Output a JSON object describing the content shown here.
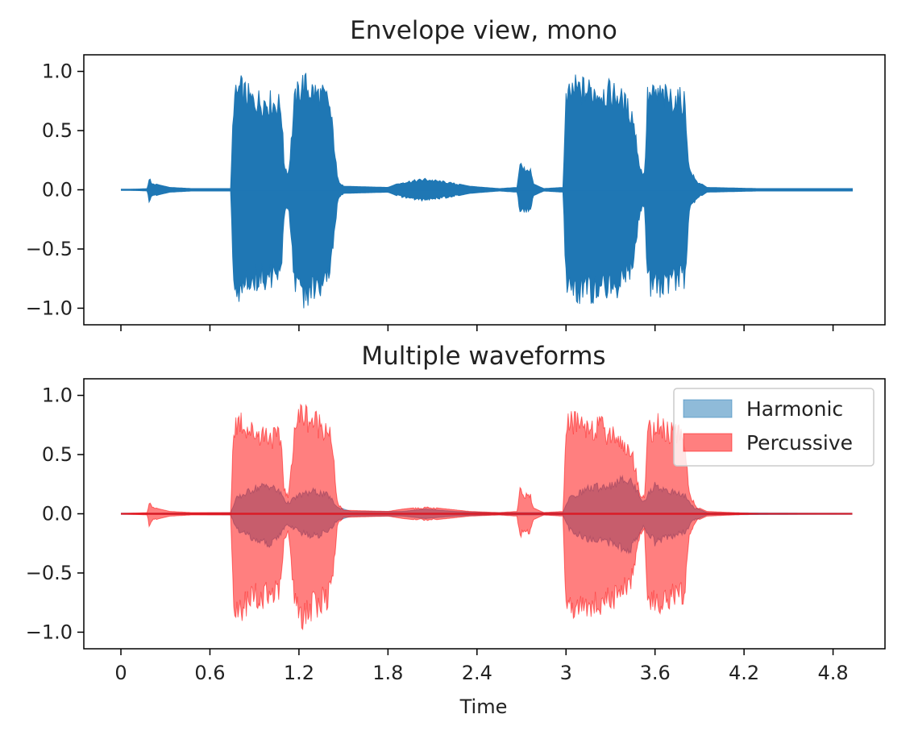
{
  "chart_data": [
    {
      "type": "area",
      "title": "Envelope view, mono",
      "xlabel": "",
      "ylabel": "",
      "xlim": [
        -0.25,
        5.15
      ],
      "ylim": [
        -1.14,
        1.14
      ],
      "xticks": [
        0,
        0.6,
        1.2,
        1.8,
        2.4,
        3.0,
        3.6,
        4.2,
        4.8
      ],
      "xticklabels": [
        "",
        "",
        "",
        "",
        "",
        "",
        "",
        "",
        ""
      ],
      "yticks": [
        1.0,
        0.5,
        0.0,
        -0.5,
        -1.0
      ],
      "yticklabels": [
        "1.0",
        "0.5",
        "0.0",
        "−0.5",
        "−1.0"
      ],
      "grid": false,
      "color": "#1f77b4",
      "series": [
        {
          "envelope": [
            [
              0.0,
              0.0
            ],
            [
              0.18,
              0.01
            ],
            [
              0.19,
              0.11
            ],
            [
              0.21,
              0.06
            ],
            [
              0.26,
              0.04
            ],
            [
              0.33,
              0.02
            ],
            [
              0.48,
              0.01
            ],
            [
              0.74,
              0.01
            ],
            [
              0.76,
              0.85
            ],
            [
              0.8,
              0.99
            ],
            [
              0.88,
              0.87
            ],
            [
              0.98,
              0.86
            ],
            [
              1.08,
              0.82
            ],
            [
              1.1,
              0.24
            ],
            [
              1.13,
              0.15
            ],
            [
              1.17,
              0.85
            ],
            [
              1.22,
              1.03
            ],
            [
              1.3,
              0.95
            ],
            [
              1.4,
              0.87
            ],
            [
              1.43,
              0.55
            ],
            [
              1.46,
              0.1
            ],
            [
              1.5,
              0.03
            ],
            [
              1.8,
              0.02
            ],
            [
              1.9,
              0.07
            ],
            [
              2.05,
              0.1
            ],
            [
              2.2,
              0.07
            ],
            [
              2.35,
              0.03
            ],
            [
              2.55,
              0.01
            ],
            [
              2.67,
              0.02
            ],
            [
              2.69,
              0.26
            ],
            [
              2.71,
              0.2
            ],
            [
              2.76,
              0.2
            ],
            [
              2.78,
              0.05
            ],
            [
              2.85,
              0.01
            ],
            [
              2.98,
              0.02
            ],
            [
              3.0,
              0.85
            ],
            [
              3.05,
              0.98
            ],
            [
              3.2,
              0.96
            ],
            [
              3.35,
              0.92
            ],
            [
              3.45,
              0.72
            ],
            [
              3.5,
              0.2
            ],
            [
              3.53,
              0.15
            ],
            [
              3.55,
              0.9
            ],
            [
              3.62,
              0.92
            ],
            [
              3.72,
              0.88
            ],
            [
              3.8,
              0.86
            ],
            [
              3.83,
              0.2
            ],
            [
              3.88,
              0.08
            ],
            [
              3.95,
              0.02
            ],
            [
              4.3,
              0.01
            ],
            [
              4.93,
              0.01
            ]
          ],
          "neg_envelope": [
            [
              0.0,
              0.0
            ],
            [
              0.18,
              -0.01
            ],
            [
              0.19,
              -0.11
            ],
            [
              0.21,
              -0.06
            ],
            [
              0.26,
              -0.04
            ],
            [
              0.33,
              -0.02
            ],
            [
              0.48,
              -0.01
            ],
            [
              0.74,
              -0.01
            ],
            [
              0.76,
              -0.85
            ],
            [
              0.8,
              -0.97
            ],
            [
              0.88,
              -0.87
            ],
            [
              0.98,
              -0.86
            ],
            [
              1.08,
              -0.82
            ],
            [
              1.1,
              -0.24
            ],
            [
              1.13,
              -0.15
            ],
            [
              1.17,
              -0.85
            ],
            [
              1.22,
              -1.03
            ],
            [
              1.3,
              -0.95
            ],
            [
              1.4,
              -0.87
            ],
            [
              1.43,
              -0.55
            ],
            [
              1.46,
              -0.1
            ],
            [
              1.5,
              -0.03
            ],
            [
              1.8,
              -0.02
            ],
            [
              1.9,
              -0.07
            ],
            [
              2.05,
              -0.1
            ],
            [
              2.2,
              -0.07
            ],
            [
              2.35,
              -0.03
            ],
            [
              2.55,
              -0.01
            ],
            [
              2.67,
              -0.02
            ],
            [
              2.69,
              -0.22
            ],
            [
              2.71,
              -0.2
            ],
            [
              2.76,
              -0.2
            ],
            [
              2.78,
              -0.05
            ],
            [
              2.85,
              -0.01
            ],
            [
              2.98,
              -0.02
            ],
            [
              3.0,
              -0.88
            ],
            [
              3.05,
              -0.96
            ],
            [
              3.2,
              -0.98
            ],
            [
              3.35,
              -0.92
            ],
            [
              3.45,
              -0.72
            ],
            [
              3.5,
              -0.2
            ],
            [
              3.53,
              -0.15
            ],
            [
              3.55,
              -0.9
            ],
            [
              3.62,
              -0.92
            ],
            [
              3.72,
              -0.88
            ],
            [
              3.8,
              -0.86
            ],
            [
              3.83,
              -0.2
            ],
            [
              3.88,
              -0.08
            ],
            [
              3.95,
              -0.02
            ],
            [
              4.3,
              -0.01
            ],
            [
              4.93,
              -0.01
            ]
          ]
        }
      ]
    },
    {
      "type": "area",
      "title": "Multiple waveforms",
      "xlabel": "Time",
      "ylabel": "",
      "xlim": [
        -0.25,
        5.15
      ],
      "ylim": [
        -1.14,
        1.14
      ],
      "xticks": [
        0,
        0.6,
        1.2,
        1.8,
        2.4,
        3.0,
        3.6,
        4.2,
        4.8
      ],
      "xticklabels": [
        "0",
        "0.6",
        "1.2",
        "1.8",
        "2.4",
        "3",
        "3.6",
        "4.2",
        "4.8"
      ],
      "yticks": [
        1.0,
        0.5,
        0.0,
        -0.5,
        -1.0
      ],
      "yticklabels": [
        "1.0",
        "0.5",
        "0.0",
        "−0.5",
        "−1.0"
      ],
      "grid": false,
      "legend": {
        "position": "top-right"
      },
      "series": [
        {
          "name": "Harmonic",
          "color": "#1f77b4",
          "alpha": 0.5,
          "envelope": [
            [
              0.0,
              0.0
            ],
            [
              0.74,
              0.01
            ],
            [
              0.78,
              0.15
            ],
            [
              0.9,
              0.25
            ],
            [
              1.0,
              0.28
            ],
            [
              1.08,
              0.2
            ],
            [
              1.12,
              0.1
            ],
            [
              1.2,
              0.18
            ],
            [
              1.3,
              0.22
            ],
            [
              1.4,
              0.18
            ],
            [
              1.46,
              0.06
            ],
            [
              1.55,
              0.02
            ],
            [
              1.9,
              0.02
            ],
            [
              2.05,
              0.04
            ],
            [
              2.25,
              0.02
            ],
            [
              2.5,
              0.01
            ],
            [
              2.98,
              0.01
            ],
            [
              3.02,
              0.15
            ],
            [
              3.15,
              0.25
            ],
            [
              3.3,
              0.28
            ],
            [
              3.42,
              0.35
            ],
            [
              3.47,
              0.25
            ],
            [
              3.52,
              0.12
            ],
            [
              3.6,
              0.28
            ],
            [
              3.7,
              0.22
            ],
            [
              3.8,
              0.18
            ],
            [
              3.86,
              0.06
            ],
            [
              3.95,
              0.01
            ],
            [
              4.93,
              0.0
            ]
          ],
          "neg_envelope": [
            [
              0.0,
              0.0
            ],
            [
              0.74,
              -0.01
            ],
            [
              0.78,
              -0.15
            ],
            [
              0.9,
              -0.25
            ],
            [
              1.0,
              -0.3
            ],
            [
              1.08,
              -0.2
            ],
            [
              1.12,
              -0.1
            ],
            [
              1.2,
              -0.18
            ],
            [
              1.3,
              -0.22
            ],
            [
              1.4,
              -0.18
            ],
            [
              1.46,
              -0.06
            ],
            [
              1.55,
              -0.02
            ],
            [
              1.9,
              -0.02
            ],
            [
              2.05,
              -0.04
            ],
            [
              2.25,
              -0.02
            ],
            [
              2.5,
              -0.01
            ],
            [
              2.98,
              -0.01
            ],
            [
              3.02,
              -0.15
            ],
            [
              3.15,
              -0.25
            ],
            [
              3.3,
              -0.28
            ],
            [
              3.42,
              -0.38
            ],
            [
              3.47,
              -0.25
            ],
            [
              3.52,
              -0.12
            ],
            [
              3.6,
              -0.28
            ],
            [
              3.7,
              -0.22
            ],
            [
              3.8,
              -0.18
            ],
            [
              3.86,
              -0.06
            ],
            [
              3.95,
              -0.01
            ],
            [
              4.93,
              0.0
            ]
          ]
        },
        {
          "name": "Percussive",
          "color": "#ff0000",
          "alpha": 0.5,
          "envelope": [
            [
              0.0,
              0.0
            ],
            [
              0.18,
              0.01
            ],
            [
              0.19,
              0.11
            ],
            [
              0.21,
              0.06
            ],
            [
              0.26,
              0.04
            ],
            [
              0.33,
              0.02
            ],
            [
              0.48,
              0.01
            ],
            [
              0.74,
              0.01
            ],
            [
              0.76,
              0.85
            ],
            [
              0.8,
              0.92
            ],
            [
              0.88,
              0.8
            ],
            [
              0.98,
              0.78
            ],
            [
              1.08,
              0.72
            ],
            [
              1.1,
              0.24
            ],
            [
              1.13,
              0.15
            ],
            [
              1.17,
              0.85
            ],
            [
              1.22,
              0.99
            ],
            [
              1.3,
              0.9
            ],
            [
              1.4,
              0.85
            ],
            [
              1.43,
              0.55
            ],
            [
              1.46,
              0.1
            ],
            [
              1.5,
              0.03
            ],
            [
              1.8,
              0.02
            ],
            [
              1.9,
              0.04
            ],
            [
              2.05,
              0.06
            ],
            [
              2.2,
              0.04
            ],
            [
              2.35,
              0.02
            ],
            [
              2.55,
              0.01
            ],
            [
              2.67,
              0.02
            ],
            [
              2.69,
              0.23
            ],
            [
              2.71,
              0.18
            ],
            [
              2.76,
              0.18
            ],
            [
              2.78,
              0.05
            ],
            [
              2.85,
              0.01
            ],
            [
              2.98,
              0.02
            ],
            [
              3.0,
              0.85
            ],
            [
              3.05,
              0.9
            ],
            [
              3.2,
              0.85
            ],
            [
              3.35,
              0.75
            ],
            [
              3.45,
              0.55
            ],
            [
              3.5,
              0.2
            ],
            [
              3.53,
              0.15
            ],
            [
              3.55,
              0.82
            ],
            [
              3.62,
              0.85
            ],
            [
              3.72,
              0.78
            ],
            [
              3.8,
              0.76
            ],
            [
              3.83,
              0.2
            ],
            [
              3.88,
              0.06
            ],
            [
              3.95,
              0.02
            ],
            [
              4.3,
              0.0
            ],
            [
              4.93,
              0.0
            ]
          ],
          "neg_envelope": [
            [
              0.0,
              0.0
            ],
            [
              0.18,
              -0.01
            ],
            [
              0.19,
              -0.11
            ],
            [
              0.21,
              -0.06
            ],
            [
              0.26,
              -0.04
            ],
            [
              0.33,
              -0.02
            ],
            [
              0.48,
              -0.01
            ],
            [
              0.74,
              -0.01
            ],
            [
              0.76,
              -0.85
            ],
            [
              0.8,
              -0.94
            ],
            [
              0.88,
              -0.82
            ],
            [
              0.98,
              -0.8
            ],
            [
              1.08,
              -0.76
            ],
            [
              1.1,
              -0.24
            ],
            [
              1.13,
              -0.15
            ],
            [
              1.17,
              -0.85
            ],
            [
              1.22,
              -0.99
            ],
            [
              1.3,
              -0.9
            ],
            [
              1.4,
              -0.82
            ],
            [
              1.43,
              -0.55
            ],
            [
              1.46,
              -0.1
            ],
            [
              1.5,
              -0.03
            ],
            [
              1.8,
              -0.02
            ],
            [
              1.9,
              -0.04
            ],
            [
              2.05,
              -0.06
            ],
            [
              2.2,
              -0.04
            ],
            [
              2.35,
              -0.02
            ],
            [
              2.55,
              -0.01
            ],
            [
              2.67,
              -0.02
            ],
            [
              2.69,
              -0.22
            ],
            [
              2.71,
              -0.18
            ],
            [
              2.76,
              -0.18
            ],
            [
              2.78,
              -0.05
            ],
            [
              2.85,
              -0.01
            ],
            [
              2.98,
              -0.02
            ],
            [
              3.0,
              -0.88
            ],
            [
              3.05,
              -0.92
            ],
            [
              3.2,
              -0.9
            ],
            [
              3.35,
              -0.82
            ],
            [
              3.45,
              -0.62
            ],
            [
              3.5,
              -0.2
            ],
            [
              3.53,
              -0.15
            ],
            [
              3.55,
              -0.82
            ],
            [
              3.62,
              -0.85
            ],
            [
              3.72,
              -0.8
            ],
            [
              3.8,
              -0.78
            ],
            [
              3.83,
              -0.2
            ],
            [
              3.88,
              -0.06
            ],
            [
              3.95,
              -0.02
            ],
            [
              4.3,
              0.0
            ],
            [
              4.93,
              0.0
            ]
          ]
        }
      ]
    }
  ]
}
